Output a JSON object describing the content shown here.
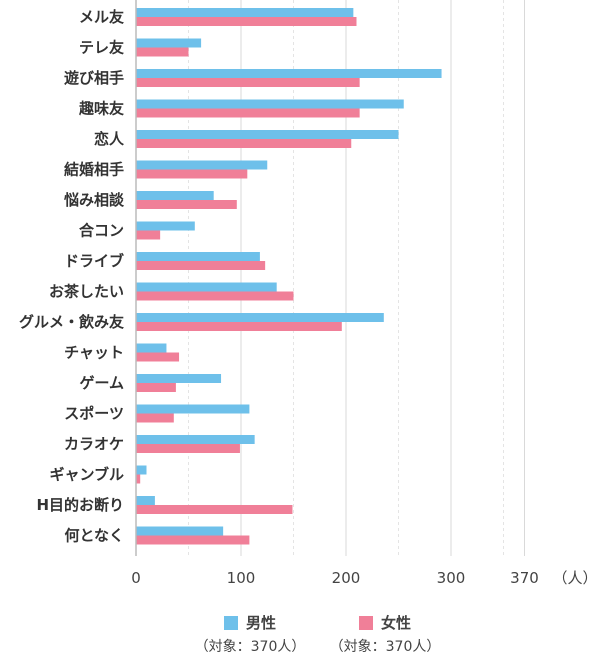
{
  "chart_data": {
    "type": "bar",
    "orientation": "horizontal",
    "categories": [
      "メル友",
      "テレ友",
      "遊び相手",
      "趣味友",
      "恋人",
      "結婚相手",
      "悩み相談",
      "合コン",
      "ドライブ",
      "お茶したい",
      "グルメ・飲み友",
      "チャット",
      "ゲーム",
      "スポーツ",
      "カラオケ",
      "ギャンブル",
      "H目的お断り",
      "何となく"
    ],
    "series": [
      {
        "name": "男性",
        "sub": "（対象：370人）",
        "color": "#6ec0ea",
        "values": [
          207,
          62,
          291,
          255,
          250,
          125,
          74,
          56,
          118,
          134,
          236,
          29,
          81,
          108,
          113,
          10,
          18,
          83
        ]
      },
      {
        "name": "女性",
        "sub": "（対象：370人）",
        "color": "#f07f98",
        "values": [
          210,
          50,
          213,
          213,
          205,
          106,
          96,
          23,
          123,
          150,
          196,
          41,
          38,
          36,
          99,
          4,
          149,
          108
        ]
      }
    ],
    "xticks": [
      0,
      100,
      200,
      300,
      370
    ],
    "xlim": [
      0,
      370
    ],
    "unit": "（人）",
    "grid": true,
    "legend_position": "bottom"
  }
}
